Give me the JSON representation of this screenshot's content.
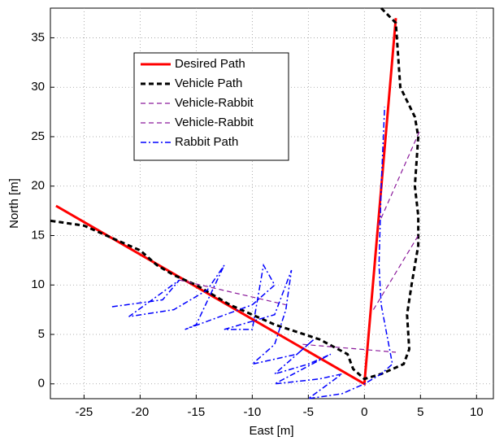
{
  "chart_data": {
    "type": "line",
    "xlabel": "East [m]",
    "ylabel": "North [m]",
    "xlim": [
      -28,
      11.5
    ],
    "ylim": [
      -1.5,
      38
    ],
    "xticks": [
      -25,
      -20,
      -15,
      -10,
      -5,
      0,
      5,
      10
    ],
    "yticks": [
      0,
      5,
      10,
      15,
      20,
      25,
      30,
      35
    ],
    "grid": true,
    "legend": "upper left",
    "series": [
      {
        "name": "Desired Path",
        "color": "#ff0000",
        "dash": "solid",
        "width": 3,
        "x": [
          -27.5,
          0,
          2.8
        ],
        "values": [
          18,
          0,
          37
        ]
      },
      {
        "name": "Vehicle Path",
        "color": "#000000",
        "dash": "dashed",
        "width": 3,
        "x": [
          1.5,
          2.8,
          3.2,
          4.5,
          4.8,
          4.5,
          4.8,
          4.8,
          4.2,
          3.8,
          4,
          3.5,
          1.5,
          0,
          -1,
          -1.5,
          -4,
          -8,
          -12,
          -15,
          -17,
          -18.5,
          -20,
          -22,
          -25,
          -28
        ],
        "values": [
          38,
          36.5,
          30,
          27,
          25,
          20,
          17,
          14,
          10,
          7,
          3.5,
          2,
          1,
          0.5,
          1.5,
          3,
          4.5,
          6,
          8,
          10,
          11,
          12,
          13.5,
          14.5,
          16,
          16.5
        ]
      },
      {
        "name": "Vehicle-Rabbit",
        "color": "#8b1a9b",
        "dash": "dashed",
        "width": 1.2,
        "x": [
          -16.5,
          -7,
          null,
          -5.5,
          2.8
        ],
        "values": [
          10.5,
          8,
          null,
          4,
          3.2
        ]
      },
      {
        "name": "Vehicle-Rabbit",
        "color": "#8b1a9b",
        "dash": "dashed",
        "width": 1.2,
        "x": [
          0.8,
          4.8,
          null,
          1.2,
          4.9
        ],
        "values": [
          7.5,
          15,
          null,
          16,
          25.5
        ]
      },
      {
        "name": "Rabbit Path",
        "color": "#0000ff",
        "dash": "dashdot",
        "width": 1.5,
        "x": [
          -22.5,
          -18,
          -16.5,
          -21,
          -17,
          -14,
          -12.5,
          -15,
          -16,
          -10,
          -8,
          -9,
          -10,
          -12.5,
          -8,
          -6.5,
          -7,
          -8,
          -10,
          -6,
          -4.5,
          -8,
          -5,
          -3,
          -8,
          -4,
          -2,
          -5,
          -2,
          0,
          1.5,
          2.5,
          1.5,
          1.3,
          1.5,
          1.8
        ],
        "values": [
          7.8,
          8.5,
          10.5,
          6.8,
          7.5,
          9.5,
          12,
          6,
          5.5,
          8,
          10,
          12,
          5.5,
          5.5,
          7,
          11.5,
          7.5,
          4,
          2,
          3,
          4.5,
          1,
          2,
          3,
          0,
          0.5,
          1,
          -1.5,
          -1,
          0,
          1,
          2,
          8,
          12,
          20,
          28
        ]
      }
    ]
  }
}
